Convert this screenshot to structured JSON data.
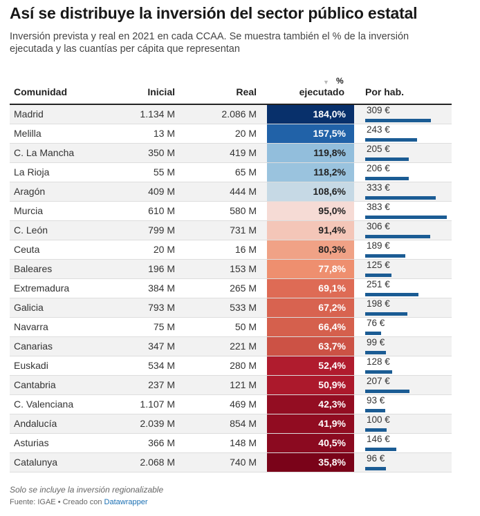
{
  "title": "Así se distribuye la inversión del sector público estatal",
  "subtitle": "Inversión prevista y real en 2021 en cada CCAA. Se muestra también el % de la inversión ejecutada y las cuantías per cápita que representan",
  "headers": {
    "comunidad": "Comunidad",
    "inicial": "Inicial",
    "real": "Real",
    "pct_top": "%",
    "pct_bottom": "ejecutado",
    "hab": "Por hab.",
    "sort_icon": "sort-down-icon"
  },
  "footer": {
    "note": "Solo se incluye la inversión regionalizable",
    "source": "Fuente: IGAE • Creado con ",
    "tool": "Datawrapper"
  },
  "colors": {
    "bar": "#1b5c94",
    "header_line": "#222222",
    "link": "#1a6fb3"
  },
  "chart_data": {
    "type": "table",
    "columns": [
      "Comunidad",
      "Inicial",
      "Real",
      "% ejecutado",
      "Por hab."
    ],
    "hab_max": 400,
    "rows": [
      {
        "name": "Madrid",
        "inicial": "1.134 M",
        "real": "2.086 M",
        "pct": 184.0,
        "pct_label": "184,0%",
        "color": "#08306b",
        "text": "#ffffff",
        "hab": 309,
        "hab_label": "309 €"
      },
      {
        "name": "Melilla",
        "inicial": "13 M",
        "real": "20 M",
        "pct": 157.5,
        "pct_label": "157,5%",
        "color": "#2162a8",
        "text": "#ffffff",
        "hab": 243,
        "hab_label": "243 €"
      },
      {
        "name": "C. La Mancha",
        "inicial": "350 M",
        "real": "419 M",
        "pct": 119.8,
        "pct_label": "119,8%",
        "color": "#92bedc",
        "text": "#222222",
        "hab": 205,
        "hab_label": "205 €"
      },
      {
        "name": "La Rioja",
        "inicial": "55 M",
        "real": "65 M",
        "pct": 118.2,
        "pct_label": "118,2%",
        "color": "#9ac3de",
        "text": "#222222",
        "hab": 206,
        "hab_label": "206 €"
      },
      {
        "name": "Aragón",
        "inicial": "409 M",
        "real": "444 M",
        "pct": 108.6,
        "pct_label": "108,6%",
        "color": "#c6d9e5",
        "text": "#222222",
        "hab": 333,
        "hab_label": "333 €"
      },
      {
        "name": "Murcia",
        "inicial": "610 M",
        "real": "580 M",
        "pct": 95.0,
        "pct_label": "95,0%",
        "color": "#f6dbd5",
        "text": "#222222",
        "hab": 383,
        "hab_label": "383 €"
      },
      {
        "name": "C. León",
        "inicial": "799 M",
        "real": "731 M",
        "pct": 91.4,
        "pct_label": "91,4%",
        "color": "#f4c6b8",
        "text": "#222222",
        "hab": 306,
        "hab_label": "306 €"
      },
      {
        "name": "Ceuta",
        "inicial": "20 M",
        "real": "16 M",
        "pct": 80.3,
        "pct_label": "80,3%",
        "color": "#f0a286",
        "text": "#222222",
        "hab": 189,
        "hab_label": "189 €"
      },
      {
        "name": "Baleares",
        "inicial": "196 M",
        "real": "153 M",
        "pct": 77.8,
        "pct_label": "77,8%",
        "color": "#ee8f6f",
        "text": "#ffffff",
        "hab": 125,
        "hab_label": "125 €"
      },
      {
        "name": "Extremadura",
        "inicial": "384 M",
        "real": "265 M",
        "pct": 69.1,
        "pct_label": "69,1%",
        "color": "#de6b55",
        "text": "#ffffff",
        "hab": 251,
        "hab_label": "251 €"
      },
      {
        "name": "Galicia",
        "inicial": "793 M",
        "real": "533 M",
        "pct": 67.2,
        "pct_label": "67,2%",
        "color": "#d86350",
        "text": "#ffffff",
        "hab": 198,
        "hab_label": "198 €"
      },
      {
        "name": "Navarra",
        "inicial": "75 M",
        "real": "50 M",
        "pct": 66.4,
        "pct_label": "66,4%",
        "color": "#d5604d",
        "text": "#ffffff",
        "hab": 76,
        "hab_label": "76 €"
      },
      {
        "name": "Canarias",
        "inicial": "347 M",
        "real": "221 M",
        "pct": 63.7,
        "pct_label": "63,7%",
        "color": "#cc5245",
        "text": "#ffffff",
        "hab": 99,
        "hab_label": "99 €"
      },
      {
        "name": "Euskadi",
        "inicial": "534 M",
        "real": "280 M",
        "pct": 52.4,
        "pct_label": "52,4%",
        "color": "#b01c2e",
        "text": "#ffffff",
        "hab": 128,
        "hab_label": "128 €"
      },
      {
        "name": "Cantabria",
        "inicial": "237 M",
        "real": "121 M",
        "pct": 50.9,
        "pct_label": "50,9%",
        "color": "#ac192c",
        "text": "#ffffff",
        "hab": 207,
        "hab_label": "207 €"
      },
      {
        "name": "C. Valenciana",
        "inicial": "1.107 M",
        "real": "469 M",
        "pct": 42.3,
        "pct_label": "42,3%",
        "color": "#930d22",
        "text": "#ffffff",
        "hab": 93,
        "hab_label": "93 €"
      },
      {
        "name": "Andalucía",
        "inicial": "2.039 M",
        "real": "854 M",
        "pct": 41.9,
        "pct_label": "41,9%",
        "color": "#910c21",
        "text": "#ffffff",
        "hab": 100,
        "hab_label": "100 €"
      },
      {
        "name": "Asturias",
        "inicial": "366 M",
        "real": "148 M",
        "pct": 40.5,
        "pct_label": "40,5%",
        "color": "#8b0a20",
        "text": "#ffffff",
        "hab": 146,
        "hab_label": "146 €"
      },
      {
        "name": "Catalunya",
        "inicial": "2.068 M",
        "real": "740 M",
        "pct": 35.8,
        "pct_label": "35,8%",
        "color": "#7a0319",
        "text": "#ffffff",
        "hab": 96,
        "hab_label": "96 €"
      }
    ]
  }
}
